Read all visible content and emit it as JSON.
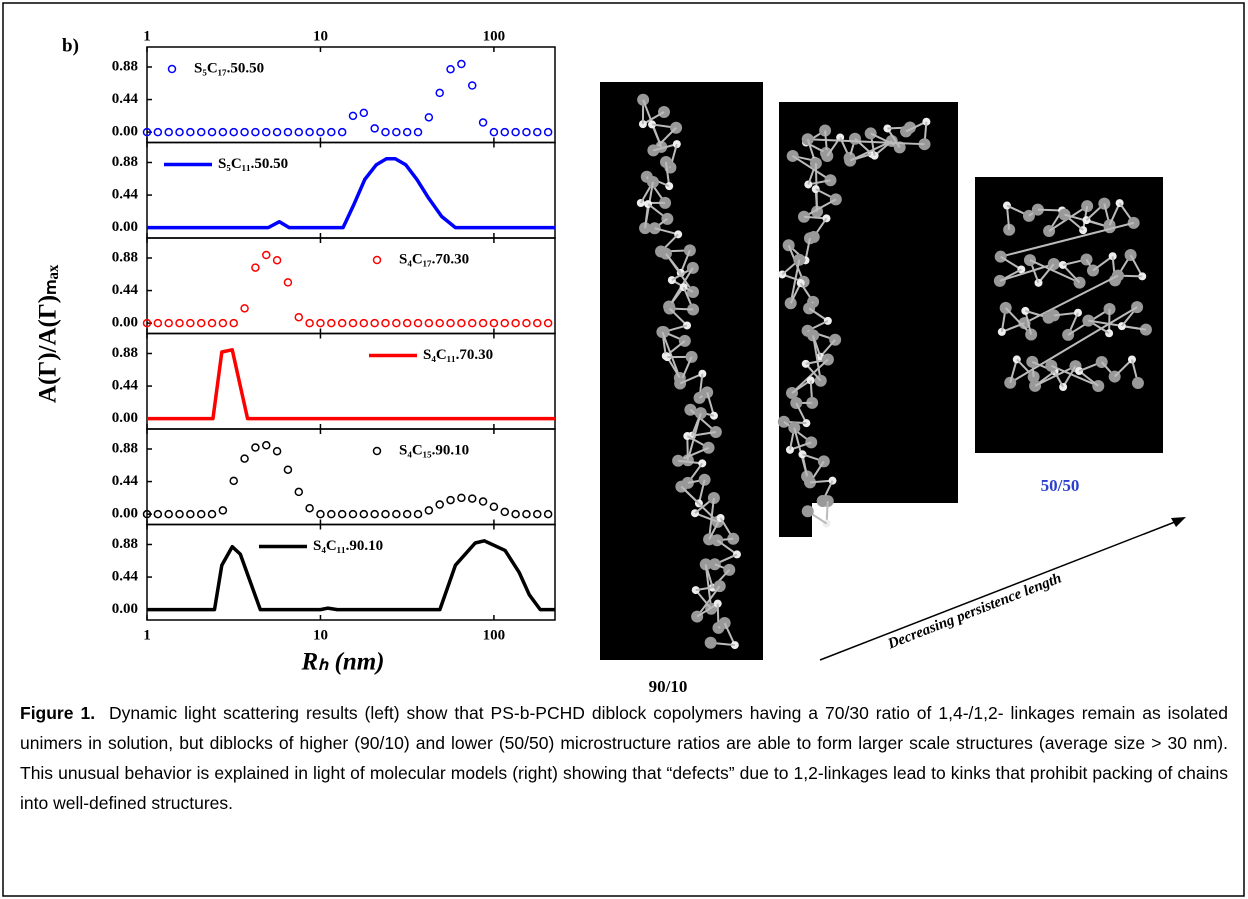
{
  "figure": {
    "panel_label": "b)",
    "y_label": "A(Γ)/A(Γ)ₘₐₓ",
    "x_label": "Rₕ (nm)",
    "model_labels": [
      "90/10",
      "50/50"
    ],
    "arrow_label": "Decreasing persistence length",
    "caption_label": "Figure 1.",
    "caption": "Dynamic light scattering results (left) show that PS-b-PCHD diblock copolymers having a 70/30 ratio of 1,4-/1,2- linkages remain as isolated unimers in solution, but diblocks of higher (90/10) and lower (50/50) microstructure ratios are able to form larger scale structures (average size > 30 nm). This unusual behavior is explained in light of molecular models (right) showing that “defects” due to 1,2-linkages lead to kinks that prohibit packing of chains into well-defined structures."
  },
  "chart_data": [
    {
      "type": "scatter",
      "log_x": true,
      "legend": "top-left",
      "xlim": [
        1,
        225
      ],
      "xticks": [
        1,
        10,
        100
      ],
      "ylim": [
        -0.14,
        1.15
      ],
      "yticks": [
        {
          "value": 0,
          "label": "0.00"
        },
        0.44,
        0.88
      ],
      "series": [
        {
          "name": "S₅C₁₇.50.50",
          "color": "#0000ff",
          "x": [
            1,
            1.155,
            1.334,
            1.54,
            1.778,
            2.054,
            2.371,
            2.738,
            3.162,
            3.652,
            4.217,
            4.87,
            5.623,
            6.494,
            7.499,
            8.66,
            10,
            11.55,
            13.34,
            15.4,
            17.78,
            20.54,
            23.71,
            27.38,
            31.62,
            36.52,
            42.17,
            48.7,
            56.23,
            64.94,
            74.99,
            86.6,
            100,
            115.5,
            133.4,
            154,
            177.8,
            205.4
          ],
          "values": [
            0,
            0,
            0,
            0,
            0,
            0,
            0,
            0,
            0,
            0,
            0,
            0,
            0,
            0,
            0,
            0,
            0,
            0,
            0,
            0.22,
            0.26,
            0.05,
            0,
            0,
            0,
            0,
            0.2,
            0.53,
            0.85,
            0.92,
            0.63,
            0.13,
            0,
            0,
            0,
            0,
            0,
            0
          ]
        }
      ]
    },
    {
      "type": "line",
      "log_x": true,
      "legend": "top-left",
      "xlim": [
        1,
        225
      ],
      "xticks": [
        1,
        10,
        100
      ],
      "ylim": [
        -0.14,
        1.15
      ],
      "yticks": [
        {
          "value": 0,
          "label": "0.00"
        },
        0.44,
        0.88
      ],
      "series": [
        {
          "name": "S₅C₁₁.50.50",
          "color": "#0000ff",
          "x": [
            1,
            5.0,
            5.8,
            6.6,
            13.5,
            15.5,
            18,
            21,
            24,
            27,
            31,
            36,
            42,
            50,
            60,
            225
          ],
          "values": [
            0,
            0,
            0.08,
            0,
            0,
            0.3,
            0.65,
            0.85,
            0.93,
            0.93,
            0.85,
            0.65,
            0.4,
            0.15,
            0,
            0
          ]
        }
      ]
    },
    {
      "type": "scatter",
      "log_x": true,
      "legend": "top-right",
      "xlim": [
        1,
        225
      ],
      "xticks": [
        1,
        10,
        100
      ],
      "ylim": [
        -0.14,
        1.15
      ],
      "yticks": [
        {
          "value": 0,
          "label": "0.00"
        },
        0.44,
        0.88
      ],
      "series": [
        {
          "name": "S₄C₁₇.70.30",
          "color": "#ff0000",
          "x": [
            1,
            1.155,
            1.334,
            1.54,
            1.778,
            2.054,
            2.371,
            2.738,
            3.162,
            3.652,
            4.217,
            4.87,
            5.623,
            6.494,
            7.499,
            8.66,
            10,
            11.55,
            13.34,
            15.4,
            17.78,
            20.54,
            23.71,
            27.38,
            31.62,
            36.52,
            42.17,
            48.7,
            56.23,
            64.94,
            74.99,
            86.6,
            100,
            115.5,
            133.4,
            154,
            177.8,
            205.4
          ],
          "values": [
            0,
            0,
            0,
            0,
            0,
            0,
            0,
            0,
            0,
            0.2,
            0.75,
            0.92,
            0.85,
            0.55,
            0.08,
            0,
            0,
            0,
            0,
            0,
            0,
            0,
            0,
            0,
            0,
            0,
            0,
            0,
            0,
            0,
            0,
            0,
            0,
            0,
            0,
            0,
            0,
            0
          ]
        }
      ]
    },
    {
      "type": "line",
      "log_x": true,
      "legend": "top-right",
      "xlim": [
        1,
        225
      ],
      "xticks": [
        1,
        10,
        100
      ],
      "ylim": [
        -0.14,
        1.15
      ],
      "yticks": [
        {
          "value": 0,
          "label": "0.00"
        },
        0.44,
        0.88
      ],
      "series": [
        {
          "name": "S₄C₁₁.70.30",
          "color": "#ff0000",
          "x": [
            1,
            2.4,
            2.7,
            3.1,
            3.8,
            225
          ],
          "values": [
            0,
            0,
            0.9,
            0.93,
            0,
            0
          ]
        }
      ]
    },
    {
      "type": "scatter",
      "log_x": true,
      "legend": "top-right",
      "xlim": [
        1,
        225
      ],
      "xticks": [
        1,
        10,
        100
      ],
      "ylim": [
        -0.14,
        1.15
      ],
      "yticks": [
        {
          "value": 0,
          "label": "0.00"
        },
        0.44,
        0.88
      ],
      "series": [
        {
          "name": "S₄C₁₅.90.10",
          "color": "#000000",
          "x": [
            1,
            1.155,
            1.334,
            1.54,
            1.778,
            2.054,
            2.371,
            2.738,
            3.162,
            3.652,
            4.217,
            4.87,
            5.623,
            6.494,
            7.499,
            8.66,
            10,
            11.55,
            13.34,
            15.4,
            17.78,
            20.54,
            23.71,
            27.38,
            31.62,
            36.52,
            42.17,
            48.7,
            56.23,
            64.94,
            74.99,
            86.6,
            100,
            115.5,
            133.4,
            154,
            177.8,
            205.4
          ],
          "values": [
            0,
            0,
            0,
            0,
            0,
            0,
            0,
            0.05,
            0.45,
            0.75,
            0.9,
            0.93,
            0.85,
            0.6,
            0.3,
            0.08,
            0,
            0,
            0,
            0,
            0,
            0,
            0,
            0,
            0,
            0,
            0.05,
            0.13,
            0.19,
            0.22,
            0.21,
            0.17,
            0.1,
            0.03,
            0,
            0,
            0,
            0
          ]
        }
      ]
    },
    {
      "type": "line",
      "log_x": true,
      "legend": "top-center",
      "xlim": [
        1,
        225
      ],
      "xticks": [
        1,
        10,
        100
      ],
      "ylim": [
        -0.14,
        1.15
      ],
      "yticks": [
        {
          "value": 0,
          "label": "0.00"
        },
        0.44,
        0.88
      ],
      "series": [
        {
          "name": "S₄C₁₁.90.10",
          "color": "#000000",
          "x": [
            1,
            2.45,
            2.7,
            3.1,
            3.45,
            4.5,
            10,
            11,
            12.5,
            48.8,
            60,
            78,
            88,
            116,
            140,
            160,
            185,
            225
          ],
          "values": [
            0,
            0,
            0.6,
            0.85,
            0.75,
            0,
            0,
            0.02,
            0,
            0,
            0.6,
            0.9,
            0.93,
            0.8,
            0.5,
            0.2,
            0,
            0
          ]
        }
      ]
    }
  ]
}
